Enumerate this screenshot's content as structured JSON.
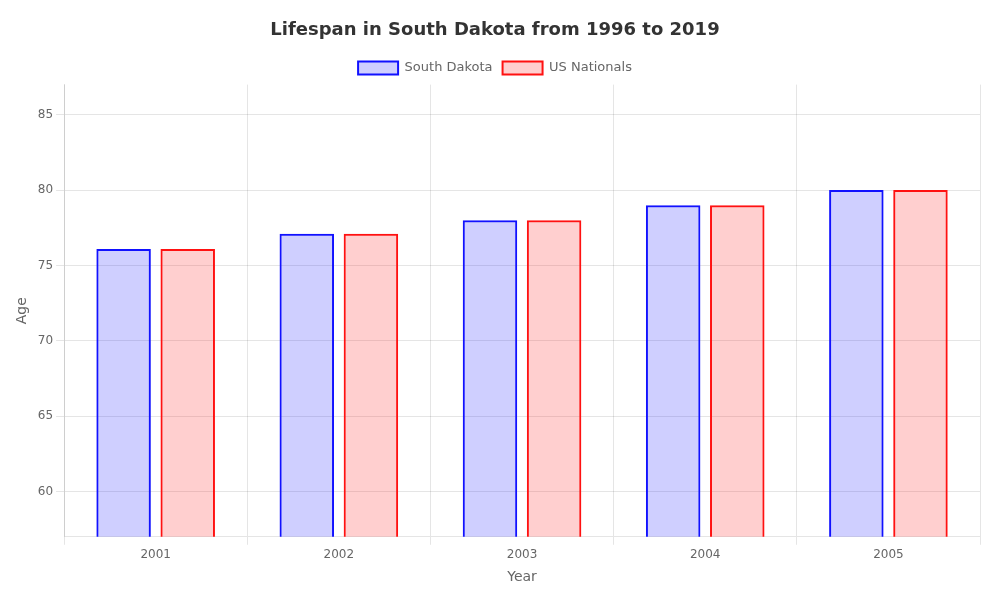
{
  "chart_data": {
    "type": "bar",
    "title": "Lifespan in South Dakota from 1996 to 2019",
    "x_label": "Year",
    "y_label": "Age",
    "categories": [
      "2001",
      "2002",
      "2003",
      "2004",
      "2005"
    ],
    "series": [
      {
        "name": "South Dakota",
        "color": "#1111ff",
        "values": [
          76.1,
          77.1,
          78.0,
          79.0,
          80.0
        ]
      },
      {
        "name": "US Nationals",
        "color": "#ff1111",
        "values": [
          76.1,
          77.1,
          78.0,
          79.0,
          80.0
        ]
      }
    ],
    "ylim": [
      57,
      87
    ],
    "yticks": [
      60,
      65,
      70,
      75,
      80,
      85
    ],
    "grid": true,
    "legend": "top"
  }
}
